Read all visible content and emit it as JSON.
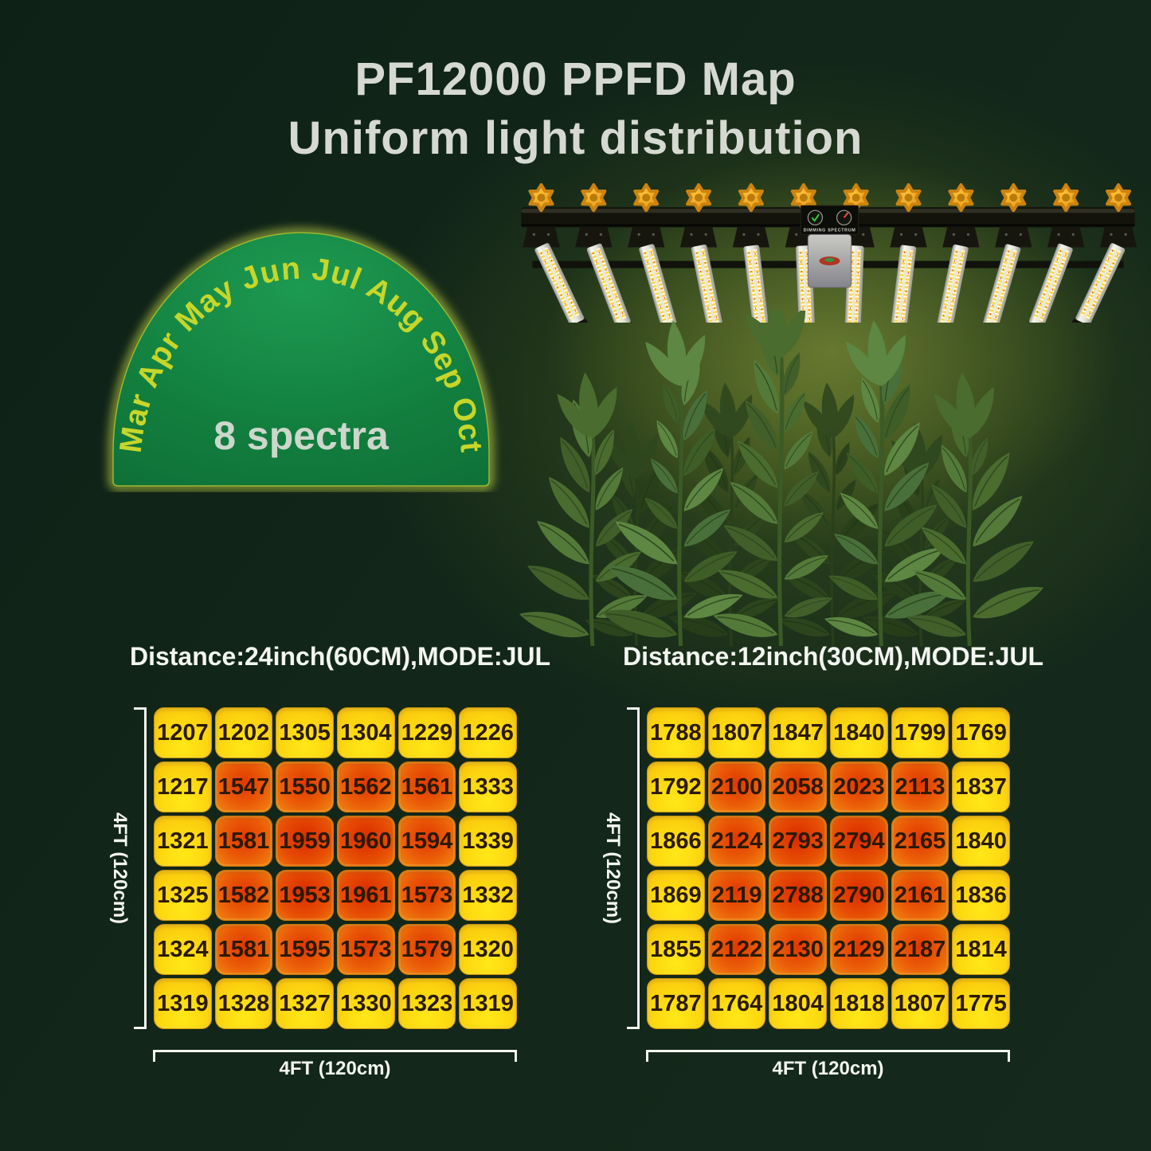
{
  "page_title": {
    "line1": "PF12000 PPFD Map",
    "line2": "Uniform light distribution"
  },
  "badge": {
    "arc_months": "Mar Apr May Jun  Jul Aug Sep Oct",
    "label": "8 spectra"
  },
  "lamp": {
    "panel_label": "DIMMING SPECTRUM"
  },
  "chart_data": [
    {
      "type": "heatmap",
      "title": "Distance:24inch(60CM),MODE:JUL",
      "xlabel": "4FT (120cm)",
      "ylabel": "4FT (120cm)",
      "rows": 6,
      "cols": 6,
      "values": [
        [
          1207,
          1202,
          1305,
          1304,
          1229,
          1226
        ],
        [
          1217,
          1547,
          1550,
          1562,
          1561,
          1333
        ],
        [
          1321,
          1581,
          1959,
          1960,
          1594,
          1339
        ],
        [
          1325,
          1582,
          1953,
          1961,
          1573,
          1332
        ],
        [
          1324,
          1581,
          1595,
          1573,
          1579,
          1320
        ],
        [
          1319,
          1328,
          1327,
          1330,
          1323,
          1319
        ]
      ],
      "legend": "cells shaded yellow (lower PPFD) to orange-red (higher PPFD)"
    },
    {
      "type": "heatmap",
      "title": "Distance:12inch(30CM),MODE:JUL",
      "xlabel": "4FT (120cm)",
      "ylabel": "4FT (120cm)",
      "rows": 6,
      "cols": 6,
      "values": [
        [
          1788,
          1807,
          1847,
          1840,
          1799,
          1769
        ],
        [
          1792,
          2100,
          2058,
          2023,
          2113,
          1837
        ],
        [
          1866,
          2124,
          2793,
          2794,
          2165,
          1840
        ],
        [
          1869,
          2119,
          2788,
          2790,
          2161,
          1836
        ],
        [
          1855,
          2122,
          2130,
          2129,
          2187,
          1814
        ],
        [
          1787,
          1764,
          1804,
          1818,
          1807,
          1775
        ]
      ],
      "legend": "cells shaded yellow (lower PPFD) to orange-red (higher PPFD)"
    }
  ],
  "colors": {
    "background": "#122619",
    "badge_green": "#117a3c",
    "badge_glow": "#d6e84e",
    "arc_text": "#c6d62a",
    "title_text": "#d6d9d1",
    "cell_yellow": "#fbd30f",
    "cell_orange": "#ee6a08",
    "cell_hot": "#e03400",
    "cell_text": "#2b1a03",
    "axis_text": "#f4f6f1"
  }
}
